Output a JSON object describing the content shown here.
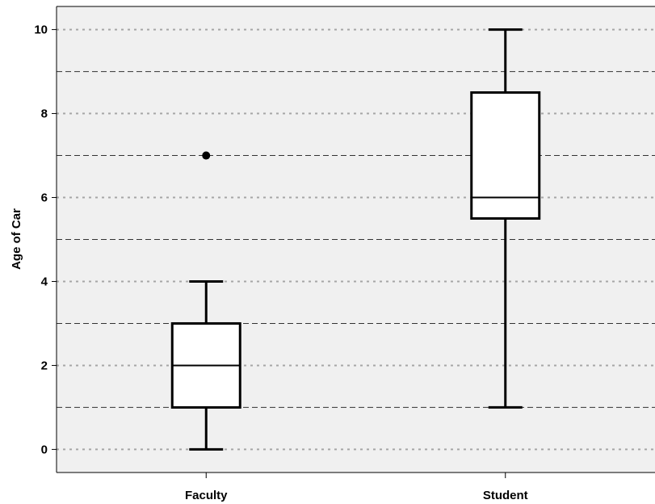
{
  "chart_data": {
    "type": "boxplot",
    "title": "",
    "xlabel": "",
    "ylabel": "Age of Car",
    "ylim": [
      -0.55,
      10.55
    ],
    "yticks": [
      0,
      2,
      4,
      6,
      8,
      10
    ],
    "yminor_gridlines": [
      1,
      3,
      5,
      7,
      9
    ],
    "grid": true,
    "categories": [
      "Faculty",
      "Student"
    ],
    "boxes": [
      {
        "category": "Faculty",
        "whisker_low": 0,
        "q1": 1,
        "median": 2,
        "q3": 3,
        "whisker_high": 4,
        "outliers": [
          7
        ]
      },
      {
        "category": "Student",
        "whisker_low": 1,
        "q1": 5.5,
        "median": 6,
        "q3": 8.5,
        "whisker_high": 10,
        "outliers": []
      }
    ],
    "colors": {
      "plot_background": "#f0f0f0",
      "box_fill": "#ffffff",
      "stroke": "#000000",
      "major_grid": "#a6a6a6",
      "minor_grid": "#333333"
    }
  }
}
